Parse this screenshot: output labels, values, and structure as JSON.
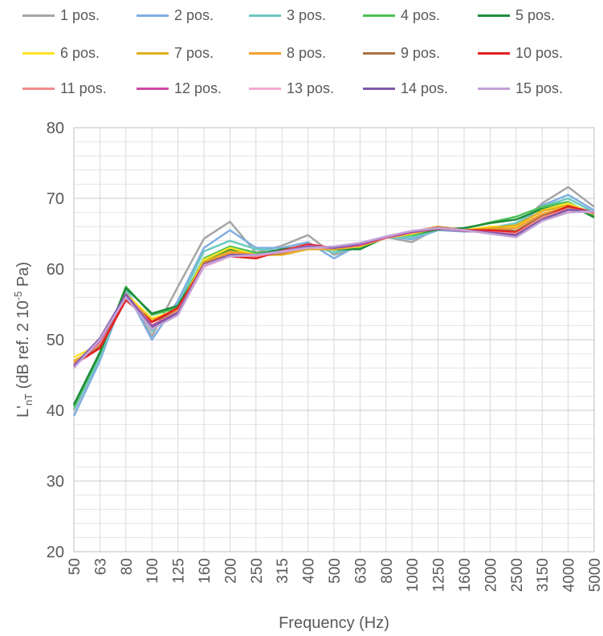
{
  "chart_data": {
    "type": "line",
    "title": "",
    "xlabel": "Frequency (Hz)",
    "ylabel_main": "L'",
    "ylabel_sub": "nT",
    "ylabel_rest": " (dB ref. 2 10",
    "ylabel_sup": "-5",
    "ylabel_end": " Pa)",
    "ylim": [
      20,
      80
    ],
    "yticks": [
      "20",
      "30",
      "40",
      "50",
      "60",
      "70",
      "80"
    ],
    "ytick_values": [
      20,
      30,
      40,
      50,
      60,
      70,
      80
    ],
    "grid": true,
    "legend_position": "top",
    "categories": [
      "50",
      "63",
      "80",
      "100",
      "125",
      "160",
      "200",
      "250",
      "315",
      "400",
      "500",
      "630",
      "800",
      "1000",
      "1250",
      "1600",
      "2000",
      "2500",
      "3150",
      "4000",
      "5000"
    ],
    "series": [
      {
        "name": "1 pos.",
        "color": "#A6A6A6",
        "values": [
          40.0,
          47.5,
          57.0,
          50.5,
          57.5,
          64.3,
          66.7,
          62.3,
          63.3,
          64.8,
          62.0,
          63.2,
          64.5,
          63.8,
          65.8,
          65.6,
          65.5,
          66.0,
          69.3,
          71.6,
          68.8
        ]
      },
      {
        "name": "2 pos.",
        "color": "#7FAEE0",
        "values": [
          39.2,
          47.0,
          57.0,
          50.0,
          55.5,
          63.0,
          65.5,
          63.0,
          63.0,
          63.8,
          61.5,
          63.5,
          64.6,
          64.2,
          65.5,
          65.3,
          65.3,
          65.8,
          69.0,
          70.5,
          68.3
        ]
      },
      {
        "name": "3 pos.",
        "color": "#6CC9C0",
        "values": [
          40.2,
          47.5,
          57.2,
          51.2,
          55.0,
          62.5,
          64.0,
          62.8,
          62.6,
          63.5,
          62.3,
          63.2,
          64.4,
          64.5,
          65.6,
          65.4,
          65.8,
          66.5,
          68.8,
          70.0,
          68.0
        ]
      },
      {
        "name": "4 pos.",
        "color": "#4CC057",
        "values": [
          40.5,
          48.0,
          57.5,
          53.5,
          54.5,
          61.5,
          63.2,
          62.3,
          62.5,
          63.3,
          62.7,
          63.0,
          64.6,
          64.8,
          65.6,
          65.7,
          66.6,
          67.4,
          68.8,
          69.5,
          67.5
        ]
      },
      {
        "name": "5 pos.",
        "color": "#1E8C3C",
        "values": [
          40.8,
          48.2,
          57.3,
          53.7,
          54.8,
          61.0,
          62.8,
          62.0,
          62.8,
          63.2,
          62.8,
          62.8,
          64.5,
          65.0,
          65.6,
          65.8,
          66.5,
          67.0,
          68.5,
          69.2,
          67.3
        ]
      },
      {
        "name": "6 pos.",
        "color": "#FFE229",
        "values": [
          47.5,
          49.3,
          56.5,
          53.0,
          54.2,
          61.3,
          63.0,
          62.0,
          62.2,
          63.0,
          62.8,
          63.2,
          64.4,
          65.0,
          65.8,
          65.5,
          66.0,
          66.0,
          68.3,
          69.3,
          67.8
        ]
      },
      {
        "name": "7 pos.",
        "color": "#E0B020",
        "values": [
          47.0,
          49.0,
          56.0,
          52.8,
          54.0,
          61.0,
          62.5,
          62.0,
          62.0,
          62.8,
          62.8,
          63.3,
          64.4,
          65.2,
          65.8,
          65.4,
          65.8,
          66.2,
          68.2,
          69.0,
          67.8
        ]
      },
      {
        "name": "8 pos.",
        "color": "#F5A030",
        "values": [
          46.8,
          49.2,
          56.2,
          52.6,
          54.2,
          60.8,
          62.3,
          62.0,
          62.2,
          63.0,
          62.9,
          63.4,
          64.5,
          65.3,
          66.0,
          65.5,
          65.6,
          65.8,
          67.8,
          68.8,
          67.8
        ]
      },
      {
        "name": "9 pos.",
        "color": "#A8743E",
        "values": [
          46.5,
          49.0,
          56.0,
          52.5,
          54.0,
          60.8,
          62.0,
          61.8,
          62.3,
          63.2,
          63.0,
          63.5,
          64.4,
          65.2,
          65.9,
          65.5,
          65.5,
          65.4,
          67.5,
          68.8,
          67.9
        ]
      },
      {
        "name": "10 pos.",
        "color": "#E32121",
        "values": [
          46.5,
          48.8,
          55.6,
          52.5,
          54.5,
          60.6,
          61.8,
          61.5,
          62.6,
          63.5,
          63.0,
          63.4,
          64.4,
          65.2,
          65.7,
          65.5,
          65.5,
          65.2,
          67.2,
          68.9,
          68.0
        ]
      },
      {
        "name": "11 pos.",
        "color": "#F28C8C",
        "values": [
          46.5,
          49.5,
          56.5,
          52.0,
          54.0,
          60.5,
          61.9,
          61.8,
          62.5,
          63.3,
          63.0,
          63.5,
          64.4,
          65.3,
          65.8,
          65.4,
          65.2,
          65.0,
          67.3,
          68.5,
          68.0
        ]
      },
      {
        "name": "12 pos.",
        "color": "#D04AA0",
        "values": [
          46.2,
          49.8,
          56.0,
          52.0,
          53.8,
          60.6,
          62.0,
          62.0,
          62.4,
          63.3,
          63.0,
          63.4,
          64.5,
          65.2,
          65.7,
          65.4,
          65.2,
          64.8,
          67.0,
          68.3,
          68.0
        ]
      },
      {
        "name": "13 pos.",
        "color": "#F5A8D0",
        "values": [
          46.0,
          50.0,
          56.3,
          51.5,
          53.6,
          60.3,
          61.8,
          62.0,
          62.4,
          63.0,
          63.0,
          63.6,
          64.6,
          65.4,
          65.8,
          65.5,
          65.0,
          64.6,
          66.8,
          68.2,
          68.0
        ]
      },
      {
        "name": "14 pos.",
        "color": "#7E57A8",
        "values": [
          46.3,
          50.2,
          56.4,
          51.8,
          53.8,
          60.5,
          62.0,
          62.0,
          62.5,
          63.2,
          63.0,
          63.6,
          64.6,
          65.3,
          65.8,
          65.5,
          65.1,
          64.8,
          67.0,
          68.4,
          68.1
        ]
      },
      {
        "name": "15 pos.",
        "color": "#C3A3D6",
        "values": [
          46.0,
          50.0,
          56.0,
          51.5,
          53.5,
          60.5,
          61.8,
          62.0,
          62.5,
          63.0,
          63.2,
          63.7,
          64.6,
          65.4,
          65.8,
          65.5,
          65.0,
          64.5,
          66.8,
          68.0,
          68.2
        ]
      }
    ]
  }
}
